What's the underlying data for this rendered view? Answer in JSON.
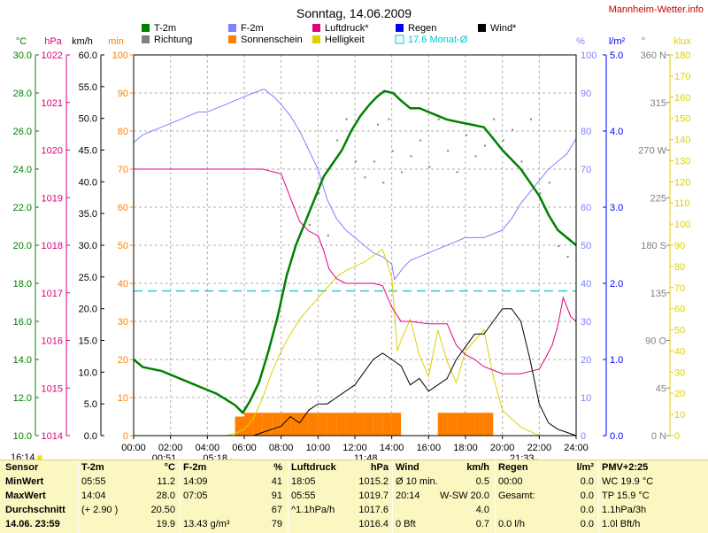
{
  "title": "Sonntag, 14.06.2009",
  "site": "Mannheim-Wetter.info",
  "legend": [
    {
      "label": "T-2m",
      "color": "#008000",
      "kind": "box"
    },
    {
      "label": "Richtung",
      "color": "#808080",
      "kind": "box"
    },
    {
      "label": "F-2m",
      "color": "#8080ff",
      "kind": "box"
    },
    {
      "label": "Sonnenschein",
      "color": "#ff8000",
      "kind": "box"
    },
    {
      "label": "Luftdruck*",
      "color": "#e0007f",
      "kind": "box"
    },
    {
      "label": "Helligkeit",
      "color": "#e0d000",
      "kind": "box"
    },
    {
      "label": "Regen",
      "color": "#0000ff",
      "kind": "box"
    },
    {
      "label": "17.6 Monat-Ø",
      "color": "#00c8d0",
      "kind": "outline"
    },
    {
      "label": "Wind*",
      "color": "#000000",
      "kind": "box"
    }
  ],
  "axes": {
    "temp": {
      "unit": "°C",
      "ticks": [
        "30.0",
        "28.0",
        "26.0",
        "24.0",
        "22.0",
        "20.0",
        "18.0",
        "16.0",
        "14.0",
        "12.0",
        "10.0"
      ],
      "color": "#008000"
    },
    "pressure": {
      "unit": "hPa",
      "ticks": [
        "1022",
        "1021",
        "1020",
        "1019",
        "1018",
        "1017",
        "1016",
        "1015",
        "1014"
      ],
      "color": "#e0007f"
    },
    "wind": {
      "unit": "km/h",
      "ticks": [
        "60.0",
        "55.0",
        "50.0",
        "45.0",
        "40.0",
        "35.0",
        "30.0",
        "25.0",
        "20.0",
        "15.0",
        "10.0",
        "5.0",
        "0.0"
      ],
      "color": "#000000"
    },
    "minutes": {
      "unit": "min",
      "ticks": [
        "100",
        "90",
        "80",
        "70",
        "60",
        "50",
        "40",
        "30",
        "20",
        "10",
        "0"
      ],
      "color": "#ff8000"
    },
    "humidity": {
      "unit": "%",
      "ticks": [
        "100",
        "90",
        "80",
        "70",
        "60",
        "50",
        "40",
        "30",
        "20",
        "10",
        "0"
      ],
      "color": "#8080ff"
    },
    "rain": {
      "unit": "l/m²",
      "ticks": [
        "5.0",
        "4.0",
        "3.0",
        "2.0",
        "1.0",
        "0.0"
      ],
      "color": "#0000ff"
    },
    "direction": {
      "unit": "°",
      "ticks": [
        "360 N",
        "315",
        "270 W",
        "225",
        "180 S",
        "135",
        "90 O",
        "45",
        "0 N"
      ],
      "color": "#808080"
    },
    "lux": {
      "unit": "klux",
      "ticks": [
        "180",
        "170",
        "160",
        "150",
        "140",
        "130",
        "120",
        "110",
        "100",
        "90",
        "80",
        "70",
        "60",
        "50",
        "40",
        "30",
        "20",
        "10",
        "0"
      ],
      "color": "#e0d000"
    },
    "time": {
      "ticks": [
        "00:00",
        "02:00",
        "04:00",
        "06:00",
        "08:00",
        "10:00",
        "12:00",
        "14:00",
        "16:00",
        "18:00",
        "20:00",
        "22:00",
        "24:00"
      ]
    }
  },
  "markers": {
    "now": "16:14",
    "sunrise": "05:18",
    "sunset": "21:33",
    "moonrise": "00:51",
    "solar_noon": "11:48"
  },
  "chart_data": {
    "type": "line",
    "x_unit": "hour",
    "xlim": [
      0,
      24
    ],
    "monthly_avg_temp": 17.6,
    "series": [
      {
        "name": "T-2m",
        "unit": "°C",
        "ylim": [
          10,
          30
        ],
        "color": "#008000",
        "x": [
          0,
          0.5,
          1,
          1.5,
          2,
          2.5,
          3,
          3.5,
          4,
          4.5,
          5,
          5.5,
          5.92,
          6.3,
          6.8,
          7.3,
          7.8,
          8.3,
          8.8,
          9.3,
          9.8,
          10.3,
          10.8,
          11.3,
          11.8,
          12.3,
          12.8,
          13.2,
          13.6,
          14.07,
          14.5,
          15,
          15.5,
          16,
          16.5,
          17,
          17.5,
          18,
          18.5,
          19,
          19.5,
          20,
          20.5,
          21,
          21.5,
          22,
          22.5,
          23,
          23.5,
          24
        ],
        "y": [
          14.0,
          13.6,
          13.5,
          13.4,
          13.2,
          13.0,
          12.8,
          12.6,
          12.4,
          12.2,
          11.9,
          11.6,
          11.2,
          11.8,
          12.8,
          14.4,
          16.2,
          18.4,
          20.0,
          21.2,
          22.4,
          23.6,
          24.3,
          25.0,
          26.0,
          26.8,
          27.4,
          27.8,
          28.1,
          28.0,
          27.6,
          27.2,
          27.2,
          27.0,
          26.8,
          26.6,
          26.5,
          26.4,
          26.3,
          26.2,
          25.6,
          25.0,
          24.5,
          24.0,
          23.3,
          22.6,
          21.6,
          20.8,
          20.4,
          20.0
        ]
      },
      {
        "name": "F-2m",
        "unit": "%",
        "ylim": [
          0,
          100
        ],
        "color": "#8080ff",
        "x": [
          0,
          0.5,
          1,
          1.5,
          2,
          2.5,
          3,
          3.5,
          4,
          4.5,
          5,
          5.5,
          6,
          6.5,
          7.08,
          7.6,
          8,
          8.5,
          9,
          9.5,
          10,
          10.5,
          11,
          11.5,
          12,
          12.5,
          13,
          13.5,
          14,
          14.15,
          14.6,
          15,
          15.5,
          16,
          16.5,
          17,
          17.5,
          18,
          18.5,
          19,
          19.5,
          20,
          20.5,
          21,
          21.5,
          22,
          22.5,
          23,
          23.5,
          24
        ],
        "y": [
          77,
          79,
          80,
          81,
          82,
          83,
          84,
          85,
          85,
          86,
          87,
          88,
          89,
          90,
          91,
          89,
          87,
          84,
          80,
          75,
          70,
          62,
          57,
          54,
          52,
          50,
          48,
          47,
          45,
          41,
          44,
          46,
          47,
          48,
          49,
          50,
          51,
          52,
          52,
          52,
          53,
          54,
          57,
          61,
          64,
          67,
          70,
          72,
          74,
          78
        ]
      },
      {
        "name": "Luftdruck*",
        "unit": "hPa",
        "ylim": [
          1014,
          1022
        ],
        "color": "#e0007f",
        "x": [
          0,
          1,
          2,
          3,
          4,
          5,
          6,
          7,
          8,
          8.5,
          9,
          9.5,
          10,
          10.3,
          10.6,
          11,
          11.5,
          12,
          12.5,
          13,
          13.5,
          14,
          14.5,
          15,
          16,
          17,
          17.5,
          18,
          18.5,
          19,
          20,
          21,
          22,
          22.3,
          22.7,
          23,
          23.3,
          23.7,
          24
        ],
        "y": [
          1019.6,
          1019.6,
          1019.6,
          1019.6,
          1019.6,
          1019.6,
          1019.6,
          1019.6,
          1019.5,
          1019.0,
          1018.5,
          1018.3,
          1018.2,
          1017.9,
          1017.5,
          1017.3,
          1017.2,
          1017.2,
          1017.2,
          1017.2,
          1017.15,
          1016.7,
          1016.4,
          1016.4,
          1016.35,
          1016.35,
          1015.9,
          1015.7,
          1015.6,
          1015.45,
          1015.3,
          1015.3,
          1015.4,
          1015.6,
          1015.9,
          1016.3,
          1016.9,
          1016.5,
          1016.4
        ]
      },
      {
        "name": "Wind*",
        "unit": "km/h",
        "ylim": [
          0,
          60
        ],
        "color": "#000000",
        "x": [
          0,
          0.5,
          1,
          1.5,
          2,
          2.5,
          3,
          3.5,
          4,
          4.5,
          5,
          5.5,
          6,
          6.5,
          7,
          7.5,
          8,
          8.5,
          9,
          9.5,
          10,
          10.5,
          11,
          11.5,
          12,
          12.5,
          13,
          13.5,
          14,
          14.5,
          15,
          15.5,
          16,
          16.5,
          17,
          17.5,
          18,
          18.5,
          19,
          19.5,
          20,
          20.5,
          21,
          21.5,
          22,
          22.5,
          23,
          23.5,
          24
        ],
        "y": [
          0,
          0,
          0,
          0,
          0,
          0,
          0,
          0,
          0,
          0,
          0,
          0,
          0,
          0,
          0.5,
          1,
          1.5,
          3,
          2,
          4,
          5,
          5,
          6,
          7,
          8,
          10,
          12,
          13,
          12,
          11,
          8,
          9,
          7,
          8,
          9,
          12,
          14,
          16,
          16,
          18,
          20,
          20,
          18,
          12,
          5,
          2,
          1,
          0.5,
          0
        ]
      },
      {
        "name": "Helligkeit",
        "unit": "klux",
        "ylim": [
          0,
          180
        ],
        "color": "#e0d000",
        "x": [
          0,
          5,
          5.5,
          6,
          6.5,
          7,
          7.5,
          8,
          8.5,
          9,
          9.5,
          10,
          10.5,
          11,
          11.5,
          12,
          12.5,
          13,
          13.5,
          14,
          14.3,
          14.5,
          15,
          15.5,
          16,
          16.5,
          17,
          17.5,
          18,
          18.5,
          19,
          19.5,
          20,
          20.5,
          21,
          21.5,
          22,
          24
        ],
        "y": [
          0,
          0,
          1,
          3,
          8,
          18,
          30,
          40,
          48,
          55,
          60,
          65,
          70,
          75,
          78,
          80,
          82,
          85,
          88,
          75,
          40,
          45,
          55,
          38,
          28,
          50,
          35,
          25,
          40,
          45,
          50,
          28,
          12,
          8,
          4,
          2,
          0,
          0
        ]
      },
      {
        "name": "Sonnenschein",
        "unit": "min",
        "ylim": [
          0,
          100
        ],
        "color": "#ff8000",
        "x": [
          5.5,
          6,
          6.5,
          7,
          7.5,
          8,
          8.5,
          9,
          9.5,
          10,
          10.5,
          11,
          11.5,
          12,
          12.5,
          13,
          13.5,
          14,
          16.5,
          17,
          17.5,
          18,
          18.5,
          19,
          20
        ],
        "y": [
          5,
          6,
          6,
          6,
          6,
          6,
          6,
          6,
          6,
          6,
          6,
          6,
          6,
          6,
          6,
          6,
          6,
          6,
          6,
          6,
          6,
          6,
          6,
          6,
          0
        ]
      }
    ],
    "direction_points": {
      "x": [
        9.5,
        10,
        10.5,
        11,
        11.5,
        12,
        12.5,
        13,
        13.2,
        13.5,
        13.8,
        14,
        14.5,
        15,
        15.5,
        16,
        16.5,
        17,
        17.5,
        18,
        18.5,
        19,
        19.5,
        20,
        20.5,
        21,
        21.5,
        22,
        22.5,
        23,
        23.5
      ],
      "y": [
        200,
        230,
        190,
        280,
        300,
        260,
        245,
        260,
        295,
        240,
        300,
        270,
        250,
        265,
        280,
        255,
        300,
        270,
        250,
        285,
        265,
        275,
        300,
        280,
        290,
        260,
        300,
        230,
        240,
        180,
        170
      ]
    }
  },
  "panel": {
    "columns": [
      {
        "title": "Sensor",
        "rows": [
          "MinWert",
          "MaxWert",
          "Durchschnitt",
          "14.06. 23:59"
        ]
      },
      {
        "title": "T-2m",
        "unit": "°C",
        "rows": [
          [
            "05:55",
            "11.2"
          ],
          [
            "14:04",
            "28.0"
          ],
          [
            "(+ 2.90 )",
            "20.50"
          ],
          [
            "",
            "19.9"
          ]
        ]
      },
      {
        "title": "F-2m",
        "unit": "%",
        "rows": [
          [
            "14:09",
            "41"
          ],
          [
            "07:05",
            "91"
          ],
          [
            "",
            "67"
          ],
          [
            "13.43 g/m³",
            "79"
          ]
        ]
      },
      {
        "title": "Luftdruck",
        "unit": "hPa",
        "rows": [
          [
            "18:05",
            "1015.2"
          ],
          [
            "05:55",
            "1019.7"
          ],
          [
            "^1.1hPa/h",
            "1017.6"
          ],
          [
            "",
            "1016.4"
          ]
        ]
      },
      {
        "title": "Wind",
        "unit": "km/h",
        "rows": [
          [
            "Ø 10 min.",
            "0.5"
          ],
          [
            "20:14",
            "W-SW 20.0"
          ],
          [
            "",
            "4.0"
          ],
          [
            "0 Bft",
            "0.7"
          ]
        ]
      },
      {
        "title": "Regen",
        "unit": "l/m²",
        "rows": [
          [
            "00:00",
            "0.0"
          ],
          [
            "Gesamt:",
            "0.0"
          ],
          [
            "",
            "0.0"
          ],
          [
            "0.0 l/h",
            "0.0"
          ]
        ]
      },
      {
        "title": "PMV+2:25",
        "unit": "",
        "rows": [
          "WC 19.9 °C",
          "TP 15.9 °C",
          "1.1hPa/3h",
          "1.0l Bft/h"
        ]
      }
    ]
  }
}
